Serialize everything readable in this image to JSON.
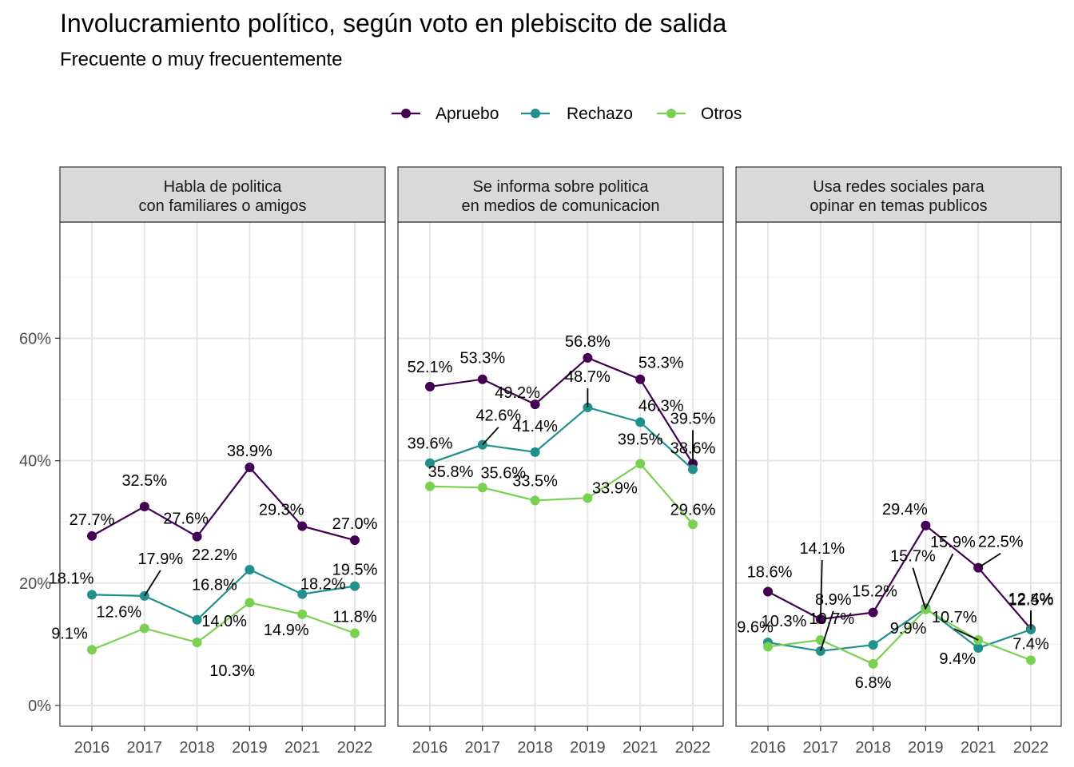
{
  "chart_data": {
    "type": "line",
    "title": "Involucramiento político, según voto en plebiscito de salida",
    "subtitle": "Frecuente o muy frecuentemente",
    "x": [
      "2016",
      "2017",
      "2018",
      "2019",
      "2021",
      "2022"
    ],
    "y_ticks": [
      "0%",
      "20%",
      "40%",
      "60%"
    ],
    "ylim": [
      -3.2,
      79.0
    ],
    "grid": true,
    "legend_position": "top",
    "series_meta": [
      {
        "name": "Apruebo",
        "color": "#440154"
      },
      {
        "name": "Rechazo",
        "color": "#21908C"
      },
      {
        "name": "Otros",
        "color": "#7AD151"
      }
    ],
    "panels": [
      {
        "strip": [
          "Habla de politica",
          "con familiares o amigos"
        ],
        "series": [
          {
            "name": "Apruebo",
            "values": [
              27.7,
              32.5,
              27.6,
              38.9,
              29.3,
              27.0
            ],
            "labels": [
              "27.7%",
              "32.5%",
              "27.6%",
              "38.9%",
              "29.3%",
              "27.0%"
            ]
          },
          {
            "name": "Rechazo",
            "values": [
              18.1,
              17.9,
              14.0,
              22.2,
              18.2,
              19.5
            ],
            "labels": [
              "18.1%",
              "17.9%",
              "14.0%",
              "22.2%",
              "18.2%",
              "19.5%"
            ]
          },
          {
            "name": "Otros",
            "values": [
              9.1,
              12.6,
              10.3,
              16.8,
              14.9,
              11.8
            ],
            "labels": [
              "9.1%",
              "12.6%",
              "10.3%",
              "16.8%",
              "14.9%",
              "11.8%"
            ]
          }
        ]
      },
      {
        "strip": [
          "Se informa sobre politica",
          "en medios de comunicacion"
        ],
        "series": [
          {
            "name": "Apruebo",
            "values": [
              52.1,
              53.3,
              49.2,
              56.8,
              53.3,
              39.5
            ],
            "labels": [
              "52.1%",
              "53.3%",
              "49.2%",
              "56.8%",
              "53.3%",
              "39.5%"
            ]
          },
          {
            "name": "Rechazo",
            "values": [
              39.6,
              42.6,
              41.4,
              48.7,
              46.3,
              38.6
            ],
            "labels": [
              "39.6%",
              "42.6%",
              "41.4%",
              "48.7%",
              "46.3%",
              "38.6%"
            ]
          },
          {
            "name": "Otros",
            "values": [
              35.8,
              35.6,
              33.5,
              33.9,
              39.5,
              29.6
            ],
            "labels": [
              "35.8%",
              "35.6%",
              "33.5%",
              "33.9%",
              "39.5%",
              "29.6%"
            ]
          }
        ]
      },
      {
        "strip": [
          "Usa redes sociales para",
          "opinar en temas publicos"
        ],
        "series": [
          {
            "name": "Apruebo",
            "values": [
              18.6,
              14.1,
              15.2,
              29.4,
              22.5,
              12.5
            ],
            "labels": [
              "18.6%",
              "14.1%",
              "15.2%",
              "29.4%",
              "22.5%",
              "12.5%"
            ]
          },
          {
            "name": "Rechazo",
            "values": [
              10.3,
              8.9,
              9.9,
              15.9,
              9.4,
              12.4
            ],
            "labels": [
              "10.3%",
              "8.9%",
              "9.9%",
              "15.9%",
              "9.4%",
              "12.4%"
            ]
          },
          {
            "name": "Otros",
            "values": [
              9.6,
              10.7,
              6.8,
              15.7,
              10.7,
              7.4
            ],
            "labels": [
              "9.6%",
              "10.7%",
              "6.8%",
              "15.7%",
              "10.7%",
              "7.4%"
            ]
          }
        ]
      }
    ]
  }
}
